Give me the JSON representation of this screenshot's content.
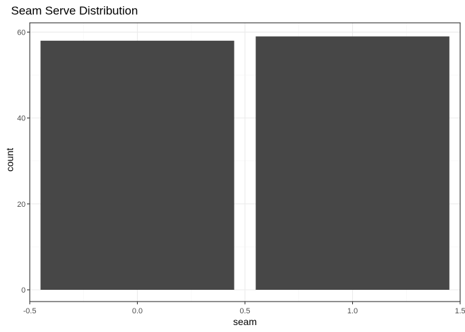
{
  "chart_data": {
    "type": "bar",
    "title": "Seam Serve Distribution",
    "xlabel": "seam",
    "ylabel": "count",
    "categories": [
      0,
      1
    ],
    "values": [
      58,
      59
    ],
    "bar_width": 0.9,
    "xlim": [
      -0.5,
      1.5
    ],
    "ylim": [
      0,
      62
    ],
    "x_ticks": [
      -0.5,
      0.0,
      0.5,
      1.0,
      1.5
    ],
    "x_tick_labels": [
      "-0.5",
      "0.0",
      "0.5",
      "1.0",
      "1.5"
    ],
    "y_ticks": [
      0,
      20,
      40,
      60
    ],
    "y_tick_labels": [
      "0",
      "20",
      "40",
      "60"
    ],
    "grid": true,
    "legend": "none",
    "bar_color": "#474747",
    "panel_border_color": "#333333",
    "major_grid_color": "#ebebeb",
    "minor_grid_color": "#f5f5f5",
    "tick_label_color": "#4d4d4d"
  }
}
